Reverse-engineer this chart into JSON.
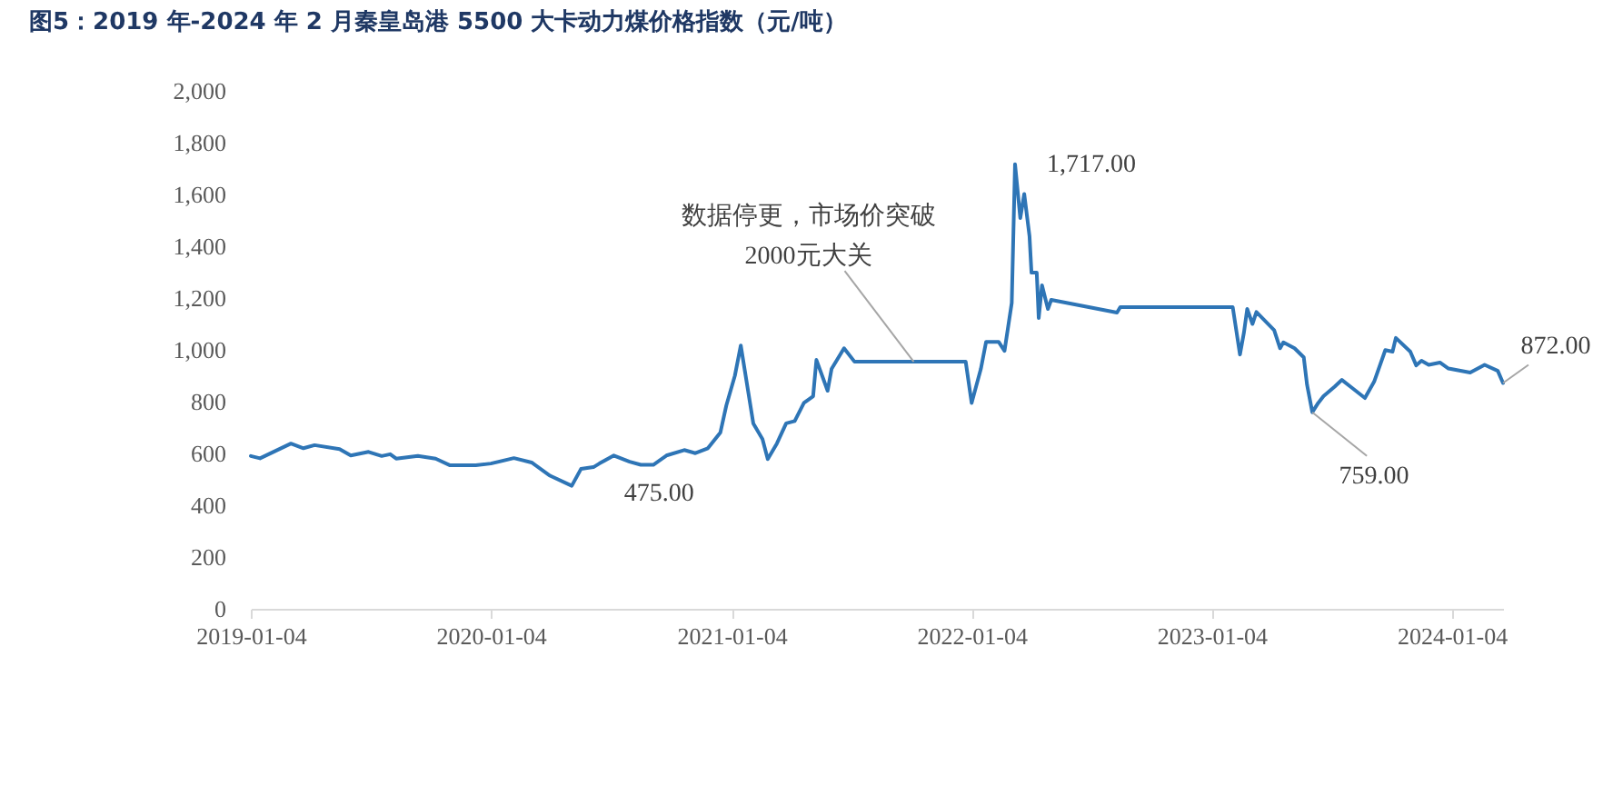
{
  "chart_data": {
    "type": "line",
    "title": "图5：2019 年-2024 年 2 月秦皇岛港 5500 大卡动力煤价格指数（元/吨）",
    "x": [
      "2019-01-04",
      "2019-01-18",
      "2019-03-06",
      "2019-03-25",
      "2019-04-11",
      "2019-05-19",
      "2019-06-05",
      "2019-07-02",
      "2019-07-22",
      "2019-08-04",
      "2019-08-13",
      "2019-09-15",
      "2019-10-12",
      "2019-11-03",
      "2019-12-12",
      "2020-01-04",
      "2020-02-08",
      "2020-03-06",
      "2020-04-03",
      "2020-05-06",
      "2020-05-20",
      "2020-06-08",
      "2020-06-17",
      "2020-07-09",
      "2020-08-02",
      "2020-08-19",
      "2020-09-07",
      "2020-09-27",
      "2020-10-24",
      "2020-11-10",
      "2020-11-29",
      "2020-12-18",
      "2020-12-27",
      "2021-01-09",
      "2021-01-18",
      "2021-02-06",
      "2021-02-20",
      "2021-02-28",
      "2021-03-14",
      "2021-03-28",
      "2021-04-10",
      "2021-04-24",
      "2021-05-08",
      "2021-05-13",
      "2021-05-30",
      "2021-06-05",
      "2021-06-24",
      "2021-07-10",
      "2021-12-26",
      "2022-01-04",
      "2022-01-18",
      "2022-01-26",
      "2022-02-14",
      "2022-02-23",
      "2022-03-06",
      "2022-03-11",
      "2022-03-19",
      "2022-03-25",
      "2022-04-02",
      "2022-04-05",
      "2022-04-13",
      "2022-04-16",
      "2022-04-21",
      "2022-04-30",
      "2022-05-05",
      "2022-08-13",
      "2022-08-18",
      "2023-02-05",
      "2023-02-16",
      "2023-02-22",
      "2023-02-27",
      "2023-03-07",
      "2023-03-13",
      "2023-04-09",
      "2023-04-18",
      "2023-04-23",
      "2023-05-10",
      "2023-05-24",
      "2023-05-29",
      "2023-06-06",
      "2023-06-15",
      "2023-06-23",
      "2023-07-10",
      "2023-07-21",
      "2023-08-03",
      "2023-08-25",
      "2023-09-08",
      "2023-09-25",
      "2023-10-06",
      "2023-10-11",
      "2023-11-02",
      "2023-11-11",
      "2023-11-19",
      "2023-11-30",
      "2023-12-17",
      "2023-12-30",
      "2024-02-01",
      "2024-02-23",
      "2024-03-14",
      "2024-03-22"
    ],
    "series": [
      {
        "color": "#2e75b6",
        "values": [
          590,
          581,
          638,
          620,
          632,
          617,
          592,
          606,
          590,
          597,
          580,
          590,
          580,
          554,
          554,
          561,
          582,
          565,
          514,
          475,
          540,
          547,
          561,
          592,
          568,
          556,
          556,
          592,
          613,
          601,
          620,
          681,
          785,
          900,
          1017,
          716,
          655,
          578,
          639,
          716,
          725,
          795,
          821,
          961,
          842,
          926,
          1006,
          954,
          954,
          795,
          926,
          1031,
          1031,
          996,
          1181,
          1717,
          1509,
          1602,
          1439,
          1298,
          1298,
          1123,
          1249,
          1158,
          1193,
          1144,
          1165,
          1165,
          982,
          1066,
          1158,
          1100,
          1146,
          1076,
          1006,
          1029,
          1006,
          971,
          865,
          759,
          795,
          821,
          858,
          884,
          858,
          814,
          877,
          999,
          993,
          1046,
          993,
          940,
          958,
          942,
          951,
          928,
          912,
          942,
          919,
          872
        ]
      }
    ],
    "xlim": [
      "2019-01-04",
      "2024-03-22"
    ],
    "xticks": [
      "2019-01-04",
      "2020-01-04",
      "2021-01-04",
      "2022-01-04",
      "2023-01-04",
      "2024-01-04"
    ],
    "ylim": [
      0,
      2000
    ],
    "yticks": [
      0,
      200,
      400,
      600,
      800,
      {
        "value": 1000,
        "label": "1,000"
      },
      {
        "value": 1200,
        "label": "1,200"
      },
      {
        "value": 1400,
        "label": "1,400"
      },
      {
        "value": 1600,
        "label": "1,600"
      },
      {
        "value": 1800,
        "label": "1,800"
      },
      {
        "value": 2000,
        "label": "2,000"
      }
    ],
    "annotations": [
      {
        "text": "475.00",
        "x": "2020-05-06",
        "y": 475
      },
      {
        "text": "数据停更，市场价突破\n2000元大关",
        "x": "2021-10-08",
        "y": 954
      },
      {
        "text": "1,717.00",
        "x": "2022-03-11",
        "y": 1717
      },
      {
        "text": "759.00",
        "x": "2023-06-06",
        "y": 759
      },
      {
        "text": "872.00",
        "x": "2024-03-22",
        "y": 872
      }
    ],
    "grid": false,
    "marker": "none",
    "line_style": "solid"
  }
}
